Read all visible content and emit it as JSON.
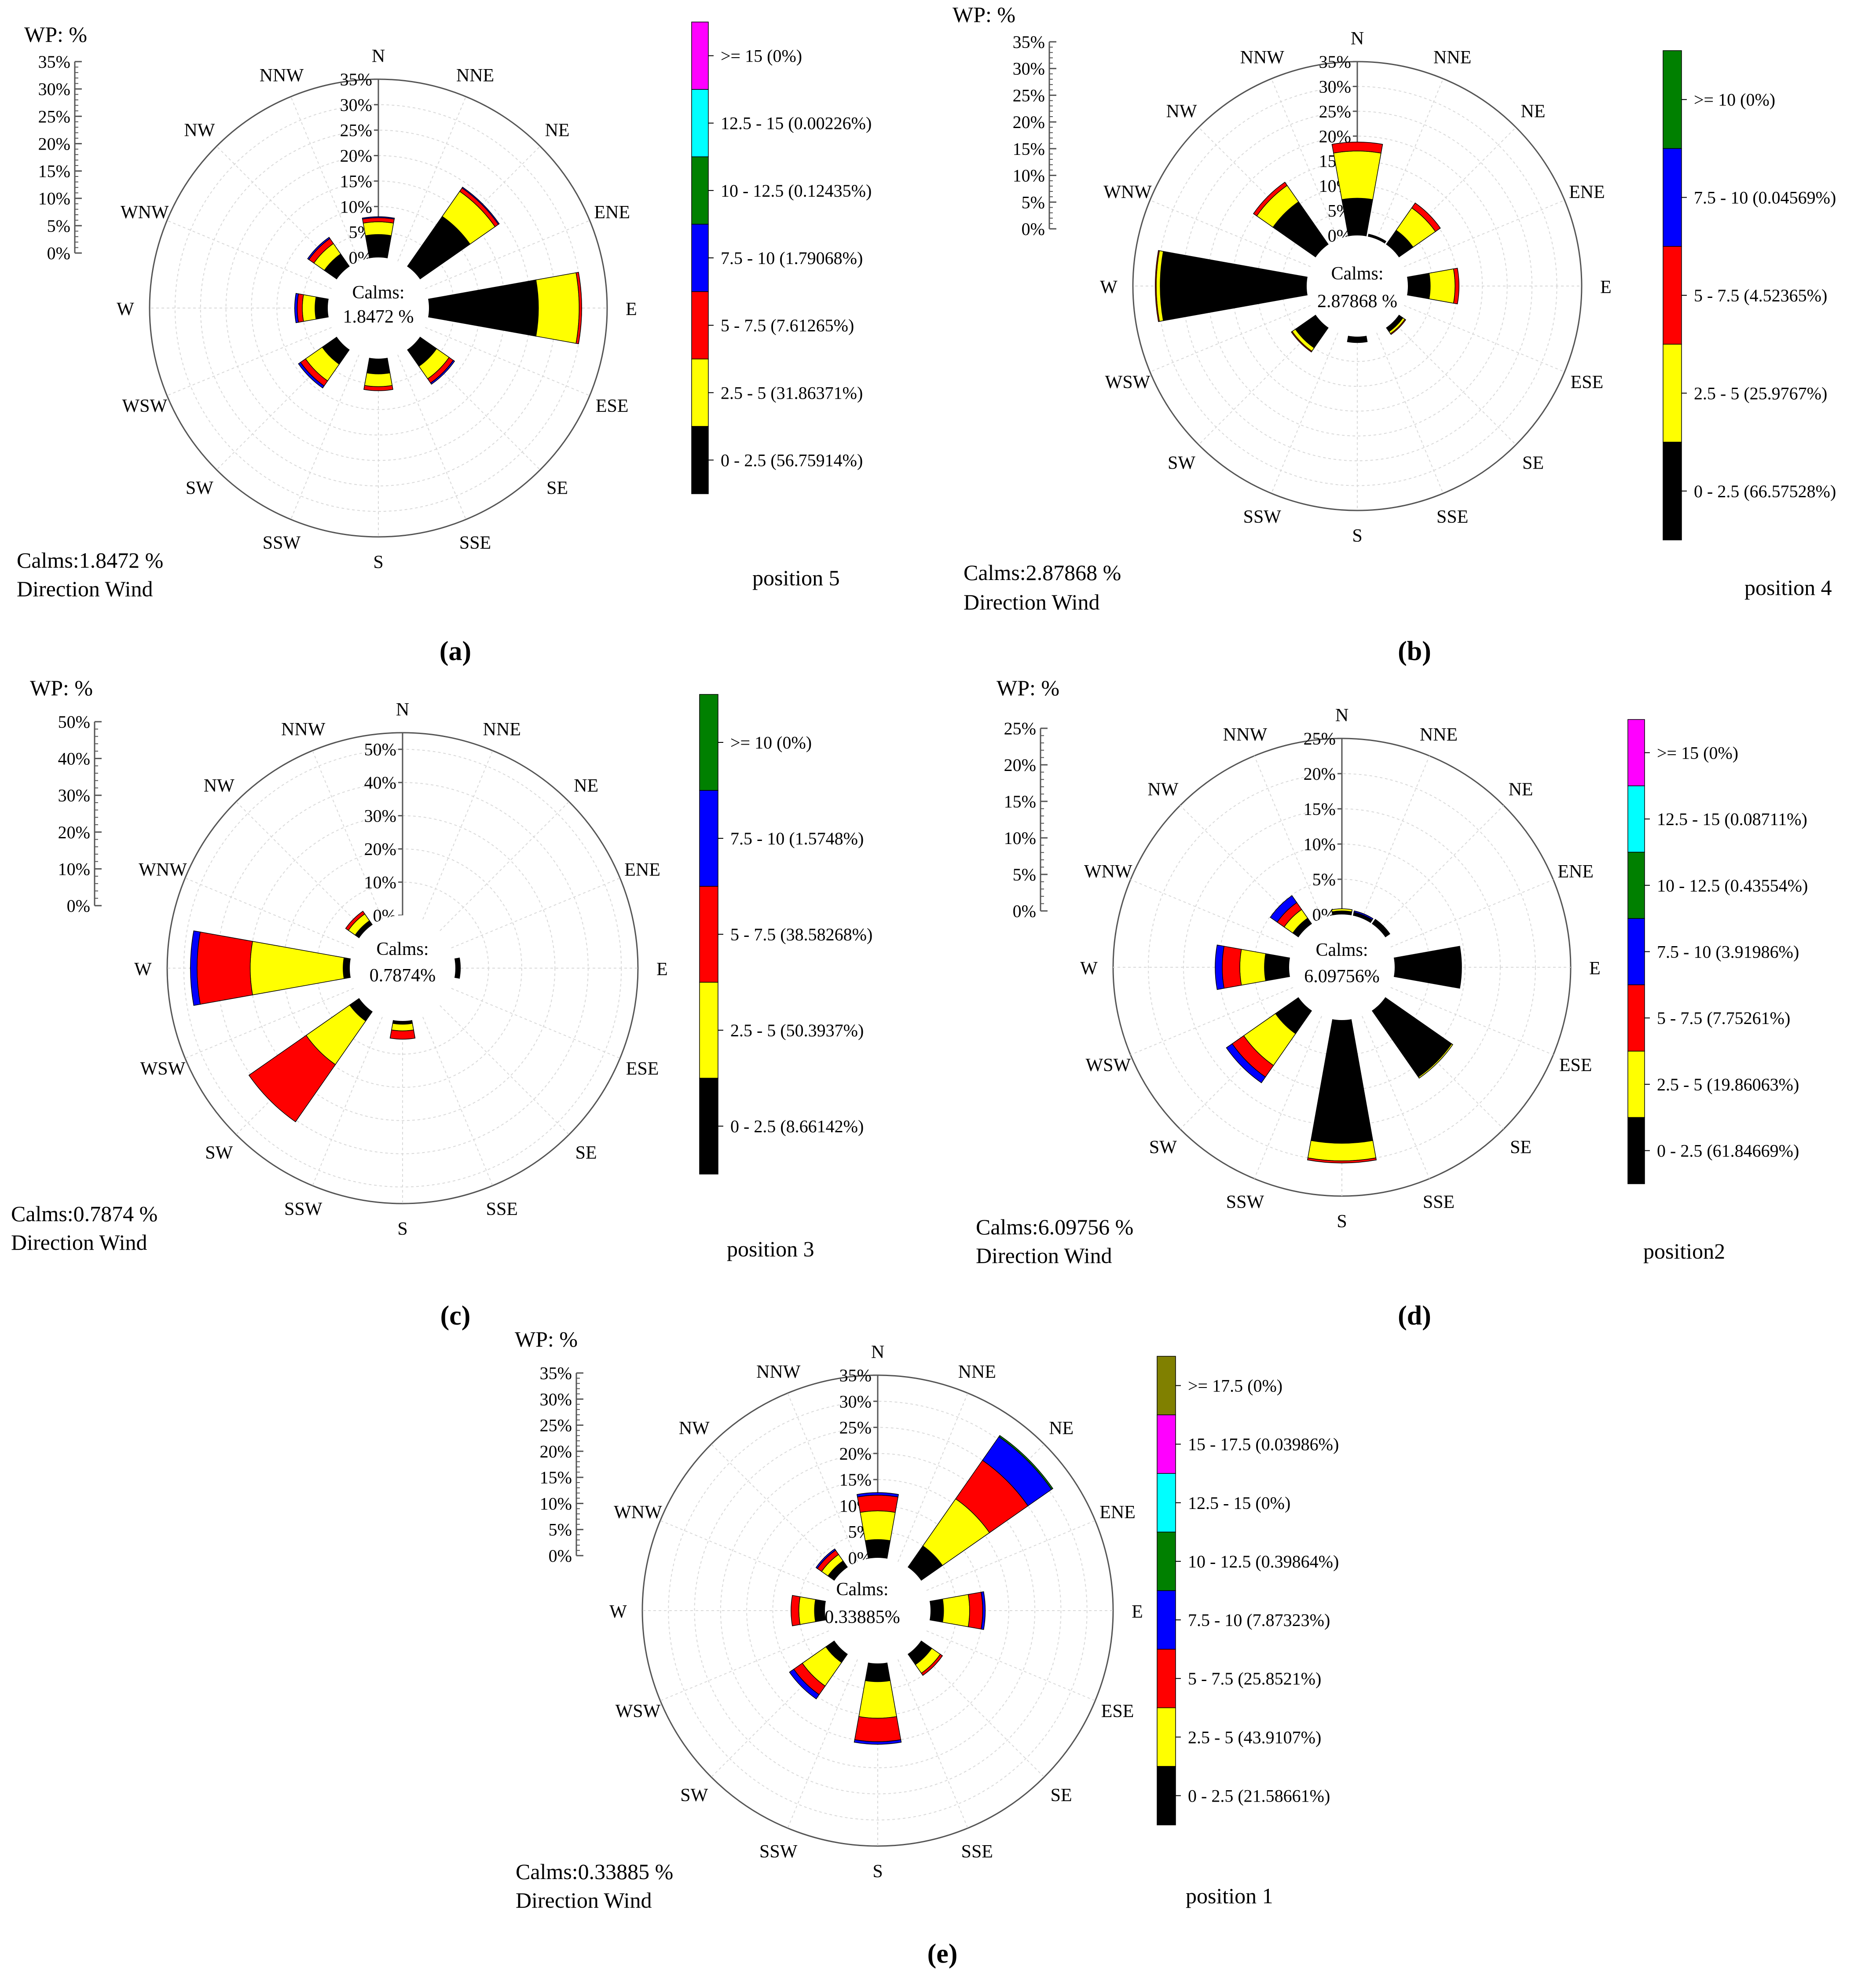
{
  "compass": [
    "N",
    "NNE",
    "NE",
    "ENE",
    "E",
    "ESE",
    "SE",
    "SSE",
    "S",
    "SSW",
    "SW",
    "WSW",
    "W",
    "WNW",
    "NW",
    "NNW"
  ],
  "colors": {
    "bin0": "#000000",
    "bin1": "#ffff00",
    "bin2": "#ff0000",
    "bin3": "#0000ff",
    "bin4": "#008000",
    "bin5": "#00ffff",
    "bin6": "#ff00ff",
    "bin7": "#808000"
  },
  "chart_data": [
    {
      "type": "windrose",
      "panel_label": "(a)",
      "scale_title": "WP:  %",
      "calms_center_label": "Calms:",
      "calms_center_value": "1.8472 %",
      "calms_footer": "Calms:1.8472 %",
      "footer_caption": "Direction Wind",
      "position_label": "position 5",
      "radial_ticks": [
        "0%",
        "5%",
        "10%",
        "15%",
        "20%",
        "25%",
        "30%",
        "35%"
      ],
      "rmax": 35,
      "legend": [
        {
          "label": "0 - 2.5 (56.75914%)",
          "color": "bin0"
        },
        {
          "label": "2.5 - 5 (31.86371%)",
          "color": "bin1"
        },
        {
          "label": "5 - 7.5 (7.61265%)",
          "color": "bin2"
        },
        {
          "label": "7.5 - 10 (1.79068%)",
          "color": "bin3"
        },
        {
          "label": "10 - 12.5 (0.12435%)",
          "color": "bin4"
        },
        {
          "label": "12.5 - 15 (0.00226%)",
          "color": "bin5"
        },
        {
          "label": ">= 15 (0%)",
          "color": "bin6"
        }
      ],
      "series": [
        {
          "direction": "N",
          "values": [
            4.5,
            2.5,
            0.8,
            0.2
          ]
        },
        {
          "direction": "NE",
          "values": [
            12.0,
            6.0,
            0.8,
            0.2
          ]
        },
        {
          "direction": "E",
          "values": [
            21.5,
            8.0,
            0.5
          ]
        },
        {
          "direction": "SE",
          "values": [
            4.0,
            3.0,
            1.0,
            0.3
          ]
        },
        {
          "direction": "S",
          "values": [
            3.0,
            2.5,
            0.8
          ]
        },
        {
          "direction": "SW",
          "values": [
            3.5,
            4.0,
            1.2,
            0.5
          ]
        },
        {
          "direction": "W",
          "values": [
            2.5,
            2.5,
            1.0,
            0.5
          ]
        },
        {
          "direction": "NW",
          "values": [
            3.0,
            2.5,
            1.2,
            0.3
          ]
        }
      ]
    },
    {
      "type": "windrose",
      "panel_label": "(b)",
      "scale_title": "WP:  %",
      "calms_center_label": "Calms:",
      "calms_center_value": "2.87868 %",
      "calms_footer": "Calms:2.87868 %",
      "footer_caption": "Direction Wind",
      "position_label": "position 4",
      "radial_ticks": [
        "0%",
        "5%",
        "10%",
        "15%",
        "20%",
        "25%",
        "30%",
        "35%"
      ],
      "rmax": 35,
      "legend": [
        {
          "label": "0 - 2.5 (66.57528%)",
          "color": "bin0"
        },
        {
          "label": "2.5 - 5 (25.9767%)",
          "color": "bin1"
        },
        {
          "label": "5 - 7.5 (4.52365%)",
          "color": "bin2"
        },
        {
          "label": "7.5 - 10 (0.04569%)",
          "color": "bin3"
        },
        {
          "label": ">= 10 (0%)",
          "color": "bin4"
        }
      ],
      "series": [
        {
          "direction": "N",
          "values": [
            7.5,
            9.5,
            1.8
          ]
        },
        {
          "direction": "NNE",
          "values": [
            0.5
          ]
        },
        {
          "direction": "NE",
          "values": [
            3.5,
            5.5,
            1.2
          ]
        },
        {
          "direction": "E",
          "values": [
            4.5,
            5.0,
            0.8
          ]
        },
        {
          "direction": "SE",
          "values": [
            1.0,
            0.5,
            0.2
          ]
        },
        {
          "direction": "S",
          "values": [
            1.2
          ]
        },
        {
          "direction": "SW",
          "values": [
            5.0,
            0.8,
            0.2
          ]
        },
        {
          "direction": "W",
          "values": [
            29.5,
            0.8,
            0.2
          ]
        },
        {
          "direction": "NW",
          "values": [
            10.5,
            4.0,
            0.8
          ]
        }
      ]
    },
    {
      "type": "windrose",
      "panel_label": "(c)",
      "scale_title": "WP:  %",
      "calms_center_label": "Calms:",
      "calms_center_value": "0.7874%",
      "calms_footer": "Calms:0.7874 %",
      "footer_caption": "Direction Wind",
      "position_label": "position 3",
      "radial_ticks": [
        "0%",
        "10%",
        "20%",
        "30%",
        "40%",
        "50%"
      ],
      "rmax": 55,
      "legend": [
        {
          "label": "0 - 2.5 (8.66142%)",
          "color": "bin0"
        },
        {
          "label": "2.5 - 5 (50.3937%)",
          "color": "bin1"
        },
        {
          "label": "5 - 7.5 (38.58268%)",
          "color": "bin2"
        },
        {
          "label": "7.5 - 10 (1.5748%)",
          "color": "bin3"
        },
        {
          "label": ">= 10 (0%)",
          "color": "bin4"
        }
      ],
      "series": [
        {
          "direction": "E",
          "values": [
            1.5
          ]
        },
        {
          "direction": "S",
          "values": [
            1.0,
            2.0,
            2.5
          ]
        },
        {
          "direction": "SW",
          "values": [
            3.5,
            16.0,
            21.0
          ]
        },
        {
          "direction": "W",
          "values": [
            2.0,
            28.0,
            16.0,
            2.0
          ]
        },
        {
          "direction": "NW",
          "values": [
            1.5,
            2.5,
            1.0
          ]
        }
      ]
    },
    {
      "type": "windrose",
      "panel_label": "(d)",
      "scale_title": "WP:  %",
      "calms_center_label": "Calms:",
      "calms_center_value": "6.09756%",
      "calms_footer": "Calms:6.09756 %",
      "footer_caption": "Direction Wind",
      "position_label": "position2",
      "radial_ticks": [
        "0%",
        "5%",
        "10%",
        "15%",
        "20%",
        "25%"
      ],
      "rmax": 25,
      "legend": [
        {
          "label": "0 - 2.5 (61.84669%)",
          "color": "bin0"
        },
        {
          "label": "2.5 - 5 (19.86063%)",
          "color": "bin1"
        },
        {
          "label": "5 - 7.5 (7.75261%)",
          "color": "bin2"
        },
        {
          "label": "7.5 - 10 (3.91986%)",
          "color": "bin3"
        },
        {
          "label": "10 - 12.5 (0.43554%)",
          "color": "bin4"
        },
        {
          "label": "12.5 - 15 (0.08711%)",
          "color": "bin5"
        },
        {
          "label": ">= 15 (0%)",
          "color": "bin6"
        }
      ],
      "series": [
        {
          "direction": "N",
          "values": [
            0.5,
            0.3
          ]
        },
        {
          "direction": "NNE",
          "values": [
            0.5,
            0,
            0,
            0.2
          ]
        },
        {
          "direction": "NE",
          "values": [
            0.8
          ]
        },
        {
          "direction": "E",
          "values": [
            9.5
          ]
        },
        {
          "direction": "SE",
          "values": [
            11.5,
            0.2
          ]
        },
        {
          "direction": "S",
          "values": [
            17.5,
            2.5,
            0.3
          ]
        },
        {
          "direction": "SW",
          "values": [
            4.0,
            5.5,
            2.0,
            1.0
          ]
        },
        {
          "direction": "W",
          "values": [
            3.5,
            3.5,
            2.5,
            1.0
          ]
        },
        {
          "direction": "NW",
          "values": [
            1.0,
            1.5,
            1.2,
            1.2
          ]
        }
      ]
    },
    {
      "type": "windrose",
      "panel_label": "(e)",
      "scale_title": "WP:  %",
      "calms_center_label": "Calms:",
      "calms_center_value": "0.33885%",
      "calms_footer": "Calms:0.33885 %",
      "footer_caption": "Direction Wind",
      "position_label": "position 1",
      "radial_ticks": [
        "0%",
        "5%",
        "10%",
        "15%",
        "20%",
        "25%",
        "30%",
        "35%"
      ],
      "rmax": 35,
      "legend": [
        {
          "label": "0 - 2.5 (21.58661%)",
          "color": "bin0"
        },
        {
          "label": "2.5 - 5 (43.9107%)",
          "color": "bin1"
        },
        {
          "label": "5 - 7.5 (25.8521%)",
          "color": "bin2"
        },
        {
          "label": "7.5 - 10 (7.87323%)",
          "color": "bin3"
        },
        {
          "label": "10 - 12.5 (0.39864%)",
          "color": "bin4"
        },
        {
          "label": "12.5 - 15 (0%)",
          "color": "bin5"
        },
        {
          "label": "15 - 17.5 (0.03986%)",
          "color": "bin6"
        },
        {
          "label": ">= 17.5 (0%)",
          "color": "bin7"
        }
      ],
      "series": [
        {
          "direction": "N",
          "values": [
            3.5,
            5.5,
            3.0,
            0.5
          ]
        },
        {
          "direction": "NE",
          "values": [
            5.0,
            11.0,
            9.0,
            5.5,
            0.3
          ]
        },
        {
          "direction": "E",
          "values": [
            2.5,
            5.0,
            2.5,
            0.5
          ]
        },
        {
          "direction": "SE",
          "values": [
            2.5,
            2.0,
            0.5
          ]
        },
        {
          "direction": "S",
          "values": [
            3.5,
            7.0,
            4.5,
            0.5
          ]
        },
        {
          "direction": "SW",
          "values": [
            2.0,
            5.5,
            2.0,
            1.0
          ]
        },
        {
          "direction": "W",
          "values": [
            2.0,
            3.0,
            1.5
          ]
        },
        {
          "direction": "NW",
          "values": [
            1.5,
            1.5,
            1.0,
            0.3
          ]
        }
      ]
    }
  ]
}
